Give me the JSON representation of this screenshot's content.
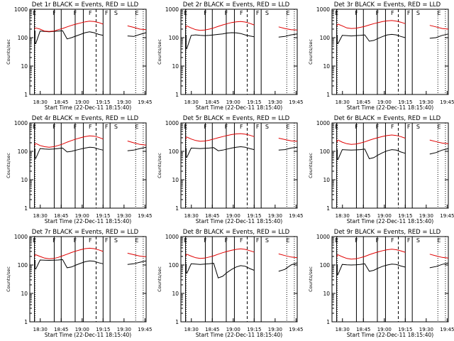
{
  "chart_data": [
    {
      "type": "line",
      "title": "Det 1r BLACK = Events, RED = LLD",
      "xlabel": "Start Time (22-Dec-11 18:15:40)",
      "ylabel": "Counts/sec",
      "yscale": "log",
      "ylim": [
        1,
        1000
      ],
      "x_ticks": [
        "18:30",
        "18:45",
        "19:00",
        "19:15",
        "19:30",
        "19:45"
      ],
      "y_ticks": [
        "1",
        "10",
        "100",
        "1000"
      ],
      "markers": [
        "E",
        "F",
        "F",
        "F",
        "F",
        "S",
        "E"
      ],
      "series": [
        {
          "name": "Events",
          "color": "#000000",
          "values": [
            60,
            170,
            165,
            160,
            165,
            170,
            175,
            90,
            100,
            115,
            130,
            150,
            160,
            150,
            130,
            120,
            115,
            110,
            130,
            150
          ]
        },
        {
          "name": "LLD",
          "color": "#e00000",
          "values": [
            220,
            200,
            170,
            165,
            170,
            190,
            210,
            240,
            270,
            300,
            330,
            360,
            380,
            370,
            340,
            300,
            260,
            230,
            200,
            190
          ]
        }
      ]
    },
    {
      "type": "line",
      "title": "Det 2r BLACK = Events, RED = LLD",
      "xlabel": "Start Time (22-Dec-11 18:15:40)",
      "ylabel": "Counts/sec",
      "yscale": "log",
      "ylim": [
        1,
        1000
      ],
      "x_ticks": [
        "18:30",
        "18:45",
        "19:00",
        "19:15",
        "19:30",
        "19:45"
      ],
      "y_ticks": [
        "1",
        "10",
        "100",
        "1000"
      ],
      "markers": [
        "E",
        "F",
        "F",
        "F",
        "F",
        "S",
        "E"
      ],
      "series": [
        {
          "name": "Events",
          "color": "#000000",
          "values": [
            40,
            120,
            125,
            120,
            118,
            120,
            125,
            130,
            135,
            145,
            150,
            148,
            140,
            125,
            115,
            108,
            105,
            110,
            125,
            135
          ]
        },
        {
          "name": "LLD",
          "color": "#e00000",
          "values": [
            260,
            220,
            190,
            180,
            185,
            200,
            220,
            250,
            280,
            310,
            340,
            360,
            370,
            355,
            320,
            280,
            240,
            210,
            190,
            185
          ]
        }
      ]
    },
    {
      "type": "line",
      "title": "Det 3r BLACK = Events, RED = LLD",
      "xlabel": "Start Time (22-Dec-11 18:15:40)",
      "ylabel": "Counts/sec",
      "yscale": "log",
      "ylim": [
        1,
        1000
      ],
      "x_ticks": [
        "18:30",
        "18:45",
        "19:00",
        "19:15",
        "19:30",
        "19:45"
      ],
      "y_ticks": [
        "1",
        "10",
        "100",
        "1000"
      ],
      "markers": [
        "E",
        "F",
        "F",
        "F",
        "F",
        "S",
        "E"
      ],
      "series": [
        {
          "name": "Events",
          "color": "#000000",
          "values": [
            60,
            120,
            118,
            115,
            118,
            120,
            125,
            75,
            80,
            95,
            110,
            125,
            130,
            125,
            110,
            100,
            95,
            100,
            120,
            135
          ]
        },
        {
          "name": "LLD",
          "color": "#e00000",
          "values": [
            300,
            260,
            220,
            210,
            215,
            230,
            250,
            280,
            310,
            340,
            370,
            390,
            400,
            380,
            350,
            310,
            270,
            240,
            210,
            200
          ]
        }
      ]
    },
    {
      "type": "line",
      "title": "Det 4r BLACK = Events, RED = LLD",
      "xlabel": "Start Time (22-Dec-11 18:15:40)",
      "ylabel": "Counts/sec",
      "yscale": "log",
      "ylim": [
        1,
        1000
      ],
      "x_ticks": [
        "18:30",
        "18:45",
        "19:00",
        "19:15",
        "19:30",
        "19:45"
      ],
      "y_ticks": [
        "1",
        "10",
        "100",
        "1000"
      ],
      "markers": [
        "E",
        "F",
        "F",
        "F",
        "F",
        "S",
        "E"
      ],
      "series": [
        {
          "name": "Events",
          "color": "#000000",
          "values": [
            55,
            125,
            120,
            118,
            120,
            125,
            130,
            95,
            100,
            110,
            120,
            130,
            140,
            135,
            120,
            110,
            105,
            110,
            125,
            140
          ]
        },
        {
          "name": "LLD",
          "color": "#e00000",
          "values": [
            190,
            160,
            145,
            140,
            145,
            160,
            180,
            210,
            240,
            270,
            300,
            330,
            350,
            340,
            310,
            270,
            230,
            200,
            175,
            165
          ]
        }
      ]
    },
    {
      "type": "line",
      "title": "Det 5r BLACK = Events, RED = LLD",
      "xlabel": "Start Time (22-Dec-11 18:15:40)",
      "ylabel": "Counts/sec",
      "yscale": "log",
      "ylim": [
        1,
        1000
      ],
      "x_ticks": [
        "18:30",
        "18:45",
        "19:00",
        "19:15",
        "19:30",
        "19:45"
      ],
      "y_ticks": [
        "1",
        "10",
        "100",
        "1000"
      ],
      "markers": [
        "E",
        "F",
        "F",
        "F",
        "F",
        "S",
        "E"
      ],
      "series": [
        {
          "name": "Events",
          "color": "#000000",
          "values": [
            60,
            130,
            128,
            125,
            128,
            130,
            135,
            105,
            110,
            120,
            130,
            140,
            145,
            140,
            125,
            115,
            110,
            115,
            130,
            140
          ]
        },
        {
          "name": "LLD",
          "color": "#e00000",
          "values": [
            320,
            270,
            240,
            225,
            230,
            245,
            270,
            300,
            330,
            360,
            390,
            410,
            420,
            400,
            370,
            330,
            290,
            260,
            235,
            225
          ]
        }
      ]
    },
    {
      "type": "line",
      "title": "Det 6r BLACK = Events, RED = LLD",
      "xlabel": "Start Time (22-Dec-11 18:15:40)",
      "ylabel": "Counts/sec",
      "yscale": "log",
      "ylim": [
        1,
        1000
      ],
      "x_ticks": [
        "18:30",
        "18:45",
        "19:00",
        "19:15",
        "19:30",
        "19:45"
      ],
      "y_ticks": [
        "1",
        "10",
        "100",
        "1000"
      ],
      "markers": [
        "E",
        "F",
        "F",
        "F",
        "F",
        "S",
        "E"
      ],
      "series": [
        {
          "name": "Events",
          "color": "#000000",
          "values": [
            50,
            115,
            112,
            110,
            112,
            115,
            120,
            55,
            60,
            75,
            90,
            105,
            115,
            110,
            95,
            85,
            80,
            90,
            110,
            125
          ]
        },
        {
          "name": "LLD",
          "color": "#e00000",
          "values": [
            250,
            210,
            185,
            175,
            180,
            195,
            215,
            245,
            275,
            305,
            335,
            360,
            375,
            360,
            330,
            290,
            250,
            220,
            195,
            185
          ]
        }
      ]
    },
    {
      "type": "line",
      "title": "Det 7r BLACK = Events, RED = LLD",
      "xlabel": "Start Time (22-Dec-11 18:15:40)",
      "ylabel": "Counts/sec",
      "yscale": "log",
      "ylim": [
        1,
        1000
      ],
      "x_ticks": [
        "18:30",
        "18:45",
        "19:00",
        "19:15",
        "19:30",
        "19:45"
      ],
      "y_ticks": [
        "1",
        "10",
        "100",
        "1000"
      ],
      "markers": [
        "E",
        "F",
        "F",
        "F",
        "F",
        "S",
        "E"
      ],
      "series": [
        {
          "name": "Events",
          "color": "#000000",
          "values": [
            70,
            150,
            148,
            145,
            148,
            150,
            155,
            80,
            85,
            100,
            115,
            130,
            140,
            135,
            120,
            110,
            105,
            110,
            125,
            140
          ]
        },
        {
          "name": "LLD",
          "color": "#e00000",
          "values": [
            230,
            200,
            175,
            165,
            170,
            185,
            210,
            240,
            275,
            310,
            345,
            375,
            390,
            375,
            340,
            300,
            260,
            230,
            205,
            195
          ]
        }
      ]
    },
    {
      "type": "line",
      "title": "Det 8r BLACK = Events, RED = LLD",
      "xlabel": "Start Time (22-Dec-11 18:15:40)",
      "ylabel": "Counts/sec",
      "yscale": "log",
      "ylim": [
        1,
        1000
      ],
      "x_ticks": [
        "18:30",
        "18:45",
        "19:00",
        "19:15",
        "19:30",
        "19:45"
      ],
      "y_ticks": [
        "1",
        "10",
        "100",
        "1000"
      ],
      "markers": [
        "E",
        "F",
        "F",
        "F",
        "F",
        "S",
        "E"
      ],
      "series": [
        {
          "name": "Events",
          "color": "#000000",
          "values": [
            50,
            110,
            108,
            105,
            108,
            110,
            115,
            35,
            40,
            55,
            70,
            85,
            95,
            90,
            75,
            65,
            60,
            70,
            100,
            120
          ]
        },
        {
          "name": "LLD",
          "color": "#e00000",
          "values": [
            240,
            205,
            180,
            170,
            175,
            190,
            210,
            240,
            270,
            300,
            330,
            355,
            370,
            355,
            320,
            285,
            245,
            215,
            190,
            180
          ]
        }
      ]
    },
    {
      "type": "line",
      "title": "Det 9r BLACK = Events, RED = LLD",
      "xlabel": "Start Time (22-Dec-11 18:15:40)",
      "ylabel": "Counts/sec",
      "yscale": "log",
      "ylim": [
        1,
        1000
      ],
      "x_ticks": [
        "18:30",
        "18:45",
        "19:00",
        "19:15",
        "19:30",
        "19:45"
      ],
      "y_ticks": [
        "1",
        "10",
        "100",
        "1000"
      ],
      "markers": [
        "E",
        "F",
        "F",
        "F",
        "F",
        "S",
        "E"
      ],
      "series": [
        {
          "name": "Events",
          "color": "#000000",
          "values": [
            45,
            105,
            102,
            100,
            102,
            105,
            110,
            60,
            65,
            78,
            90,
            100,
            108,
            104,
            92,
            84,
            80,
            88,
            105,
            118
          ]
        },
        {
          "name": "LLD",
          "color": "#e00000",
          "values": [
            230,
            195,
            170,
            160,
            165,
            180,
            200,
            230,
            260,
            290,
            320,
            345,
            360,
            345,
            315,
            280,
            240,
            210,
            185,
            175
          ]
        }
      ]
    }
  ]
}
